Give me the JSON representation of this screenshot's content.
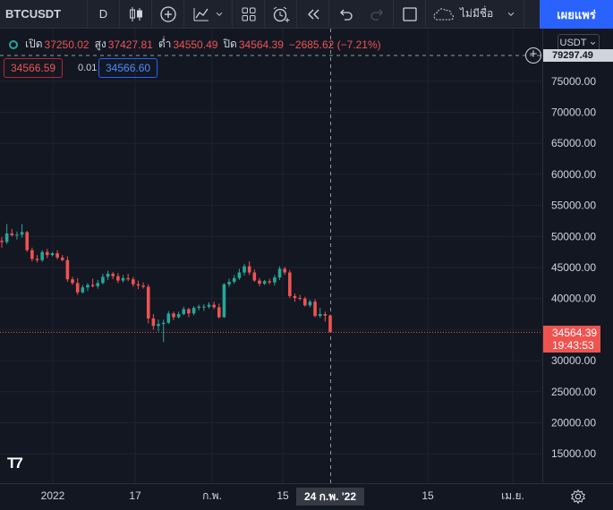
{
  "toolbar": {
    "symbol": "BTCUSDT",
    "interval": "D",
    "layout_name": "ไม่มีชื่อ",
    "publish_label": "เผยแพร่"
  },
  "legend": {
    "open_label": "เปิด",
    "open_value": "37250.02",
    "high_label": "สูง",
    "high_value": "37427.81",
    "low_label": "ต่ำ",
    "low_value": "34550.49",
    "close_label": "ปิด",
    "close_value": "34564.39",
    "change": "−2685.62 (−7.21%)"
  },
  "order": {
    "sell_price": "34566.59",
    "spread": "0.01",
    "buy_price": "34566.60"
  },
  "axis": {
    "currency": "USDT",
    "crosshair_price": "79297.49",
    "last_price": "34564.39",
    "countdown": "19:43:53",
    "crosshair_date": "24 ก.พ. '22"
  },
  "colors": {
    "up": "#26a69a",
    "down": "#ef5350",
    "background": "#131722",
    "accent": "#2962ff"
  },
  "chart_data": {
    "type": "candlestick",
    "y_ticks": [
      75000,
      70000,
      65000,
      60000,
      55000,
      50000,
      45000,
      40000,
      35000,
      30000,
      25000,
      20000,
      15000
    ],
    "x_ticks": [
      "2022",
      "17",
      "ก.พ.",
      "15",
      "15",
      "เม.ย."
    ],
    "candles": [
      [
        49300,
        49900,
        48200,
        49100
      ],
      [
        49100,
        52000,
        48800,
        50500
      ],
      [
        50500,
        51200,
        50000,
        50200
      ],
      [
        50200,
        50800,
        49500,
        50300
      ],
      [
        50300,
        52000,
        49800,
        50700
      ],
      [
        50700,
        50900,
        47500,
        47800
      ],
      [
        47800,
        48200,
        46000,
        46400
      ],
      [
        46400,
        47000,
        45800,
        46200
      ],
      [
        46200,
        47800,
        45900,
        47500
      ],
      [
        47500,
        48000,
        46500,
        47000
      ],
      [
        47000,
        47500,
        46800,
        47300
      ],
      [
        47300,
        47800,
        46300,
        46600
      ],
      [
        46600,
        47000,
        46000,
        46200
      ],
      [
        46200,
        46800,
        42700,
        43100
      ],
      [
        43100,
        43500,
        42200,
        42500
      ],
      [
        42500,
        43300,
        40600,
        41000
      ],
      [
        41000,
        42200,
        40800,
        41800
      ],
      [
        41800,
        42500,
        41200,
        42200
      ],
      [
        42200,
        43200,
        41800,
        42000
      ],
      [
        42000,
        43000,
        41600,
        42500
      ],
      [
        42500,
        44000,
        42300,
        43500
      ],
      [
        43500,
        44500,
        43000,
        44000
      ],
      [
        44000,
        44300,
        43100,
        43600
      ],
      [
        43600,
        44100,
        42500,
        42900
      ],
      [
        42900,
        43800,
        42600,
        43300
      ],
      [
        43300,
        44000,
        42800,
        43100
      ],
      [
        43100,
        43500,
        41900,
        42300
      ],
      [
        42300,
        42900,
        41500,
        42100
      ],
      [
        42100,
        42600,
        41600,
        41900
      ],
      [
        41900,
        42300,
        36000,
        36800
      ],
      [
        36800,
        37500,
        35000,
        35600
      ],
      [
        35600,
        36600,
        34700,
        35900
      ],
      [
        35900,
        36600,
        33000,
        36100
      ],
      [
        36100,
        38000,
        35900,
        37600
      ],
      [
        37600,
        37900,
        36500,
        37000
      ],
      [
        37000,
        37900,
        36800,
        37500
      ],
      [
        37500,
        38700,
        37300,
        38300
      ],
      [
        38300,
        38500,
        37000,
        37600
      ],
      [
        37600,
        38800,
        37300,
        38500
      ],
      [
        38500,
        39000,
        38100,
        38700
      ],
      [
        38700,
        39100,
        38000,
        38700
      ],
      [
        38700,
        39400,
        38400,
        39000
      ],
      [
        39000,
        39500,
        38300,
        38600
      ],
      [
        38600,
        39200,
        36800,
        37000
      ],
      [
        37000,
        42500,
        36900,
        42300
      ],
      [
        42300,
        43200,
        41900,
        42700
      ],
      [
        42700,
        43800,
        42400,
        43300
      ],
      [
        43300,
        44800,
        43000,
        44200
      ],
      [
        44200,
        45600,
        43700,
        45200
      ],
      [
        45200,
        46000,
        43800,
        44200
      ],
      [
        44200,
        44700,
        42700,
        42900
      ],
      [
        42900,
        43300,
        42000,
        42400
      ],
      [
        42400,
        43000,
        42200,
        42800
      ],
      [
        42800,
        43200,
        42300,
        42600
      ],
      [
        42600,
        43800,
        42100,
        43400
      ],
      [
        43400,
        45200,
        43000,
        44800
      ],
      [
        44800,
        45100,
        43800,
        44200
      ],
      [
        44200,
        44600,
        40100,
        40400
      ],
      [
        40400,
        40800,
        39500,
        40100
      ],
      [
        40100,
        40600,
        39700,
        40000
      ],
      [
        40000,
        40300,
        38700,
        38900
      ],
      [
        38900,
        39800,
        38600,
        39500
      ],
      [
        39500,
        39900,
        37000,
        37200
      ],
      [
        37200,
        38500,
        36900,
        37500
      ],
      [
        37500,
        37900,
        36300,
        37250
      ],
      [
        37250,
        37427,
        34550,
        34564
      ]
    ]
  }
}
